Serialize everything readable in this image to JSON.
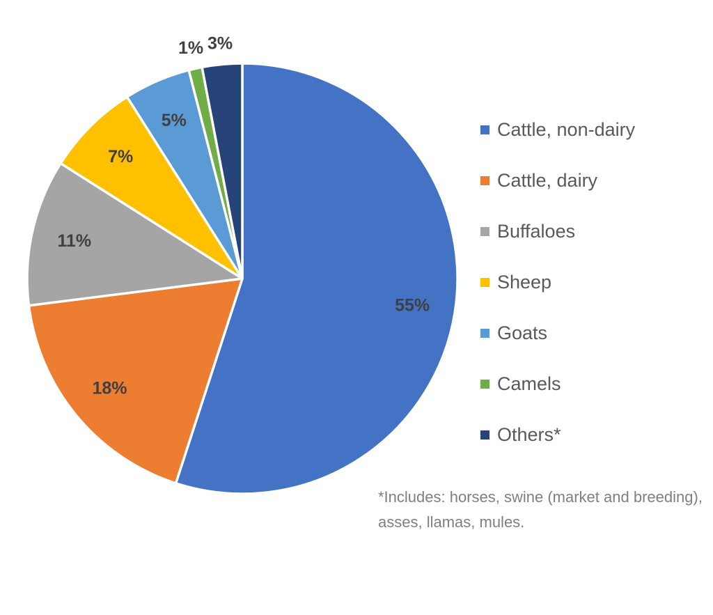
{
  "chart_data": {
    "type": "pie",
    "start_angle": "12 o'clock",
    "direction": "clockwise",
    "legend_position": "right",
    "slices": [
      {
        "label": "Cattle, non-dairy",
        "value": 55,
        "data_label": "55%",
        "color": "#4472C4"
      },
      {
        "label": "Cattle, dairy",
        "value": 18,
        "data_label": "18%",
        "color": "#ED7D31"
      },
      {
        "label": "Buffaloes",
        "value": 11,
        "data_label": "11%",
        "color": "#A5A5A5"
      },
      {
        "label": "Sheep",
        "value": 7,
        "data_label": "7%",
        "color": "#FFC000"
      },
      {
        "label": "Goats",
        "value": 5,
        "data_label": "5%",
        "color": "#5B9BD5"
      },
      {
        "label": "Camels",
        "value": 1,
        "data_label": "1%",
        "color": "#70AD47"
      },
      {
        "label": "Others*",
        "value": 3,
        "data_label": "3%",
        "color": "#264478"
      }
    ],
    "footnote": "*Includes: horses, swine (market and breeding), asses, llamas, mules."
  }
}
